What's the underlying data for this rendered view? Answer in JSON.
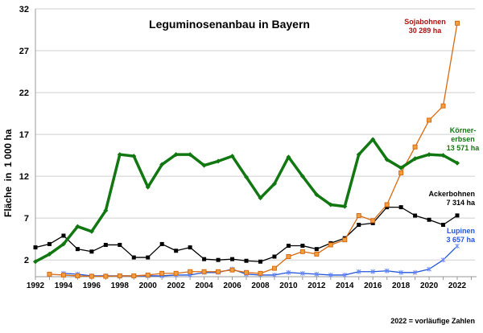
{
  "chart_data": {
    "type": "line",
    "title": "Leguminosenanbau in Bayern",
    "xlabel": "",
    "ylabel": "Fläche  in  1 000 ha",
    "footnote": "2022 = vorläufige Zahlen",
    "ylim": [
      0,
      32
    ],
    "yticks": [
      2,
      7,
      12,
      17,
      22,
      27,
      32
    ],
    "xlim": [
      1992,
      2023
    ],
    "xticks": [
      1992,
      1994,
      1996,
      1998,
      2000,
      2002,
      2004,
      2006,
      2008,
      2010,
      2012,
      2014,
      2016,
      2018,
      2020,
      2022
    ],
    "grid": true,
    "series": [
      {
        "name": "Körnererbsen",
        "label": [
          "Körner-",
          "erbsen",
          "13 571 ha"
        ],
        "color": "#117711",
        "start": 1992,
        "values": [
          1.8,
          2.7,
          3.9,
          6.0,
          5.4,
          7.9,
          14.6,
          14.4,
          10.7,
          13.4,
          14.6,
          14.6,
          13.3,
          13.8,
          14.4,
          11.9,
          9.4,
          11.1,
          14.3,
          12.0,
          9.8,
          8.6,
          8.4,
          14.6,
          16.4,
          14.0,
          13.0,
          14.1,
          14.6,
          14.5,
          13.571
        ]
      },
      {
        "name": "Ackerbohnen",
        "label": [
          "Ackerbohnen",
          "7 314 ha"
        ],
        "color": "#000000",
        "start": 1992,
        "values": [
          3.5,
          3.9,
          4.9,
          3.3,
          3.0,
          3.8,
          3.8,
          2.3,
          2.3,
          3.9,
          3.1,
          3.5,
          2.1,
          2.0,
          2.1,
          1.9,
          1.8,
          2.4,
          3.7,
          3.7,
          3.3,
          4.0,
          4.6,
          6.2,
          6.4,
          8.3,
          8.3,
          7.3,
          6.8,
          6.2,
          7.314
        ]
      },
      {
        "name": "Sojabohnen",
        "label": [
          "Sojabohnen",
          "30 289 ha"
        ],
        "color": "#d96a10",
        "labelColor": "#b01010",
        "start": 1993,
        "values": [
          0.3,
          0.2,
          0.1,
          0.05,
          0.05,
          0.1,
          0.1,
          0.2,
          0.4,
          0.4,
          0.6,
          0.6,
          0.6,
          0.8,
          0.5,
          0.4,
          1.0,
          2.4,
          3.0,
          2.7,
          3.8,
          4.4,
          7.3,
          6.7,
          8.6,
          12.4,
          15.5,
          18.7,
          20.4,
          30.289
        ]
      },
      {
        "name": "Lupinen",
        "label": [
          "Lupinen",
          "3 657 ha"
        ],
        "color": "#2255dd",
        "start": 1994,
        "values": [
          0.4,
          0.3,
          0.1,
          0.1,
          0.1,
          0.1,
          0.1,
          0.1,
          0.2,
          0.2,
          0.5,
          0.5,
          0.9,
          0.3,
          0.2,
          0.2,
          0.5,
          0.4,
          0.3,
          0.2,
          0.2,
          0.6,
          0.6,
          0.7,
          0.5,
          0.5,
          0.9,
          2.0,
          3.657
        ]
      }
    ]
  }
}
